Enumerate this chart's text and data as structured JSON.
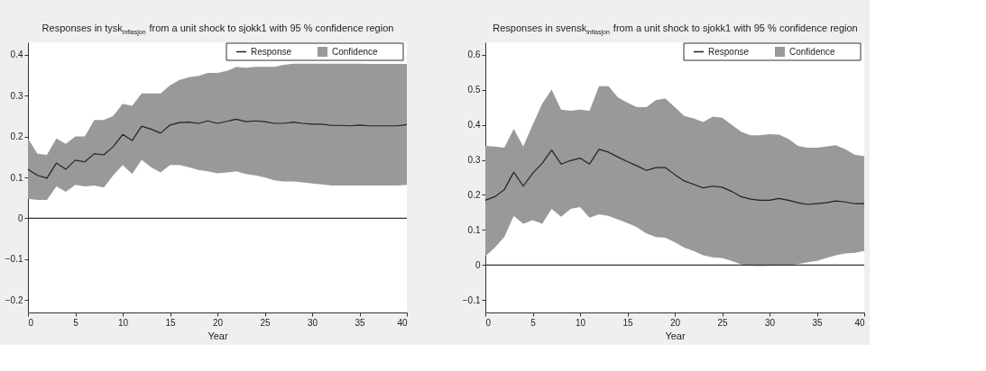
{
  "chart_data": [
    {
      "type": "line",
      "title": "Responses in tysk$_{inflasjon}$ from a unit shock to sjokk1 with 95 % confidence region",
      "xlabel": "Year",
      "x": [
        0,
        1,
        2,
        3,
        4,
        5,
        6,
        7,
        8,
        9,
        10,
        11,
        12,
        13,
        14,
        15,
        16,
        17,
        18,
        19,
        20,
        21,
        22,
        23,
        24,
        25,
        26,
        27,
        28,
        29,
        30,
        31,
        32,
        33,
        34,
        35,
        36,
        37,
        38,
        39,
        40
      ],
      "series": [
        {
          "name": "Response",
          "type": "line",
          "color": "#222222",
          "values": [
            0.12,
            0.105,
            0.098,
            0.135,
            0.12,
            0.142,
            0.138,
            0.158,
            0.155,
            0.175,
            0.205,
            0.19,
            0.225,
            0.218,
            0.208,
            0.228,
            0.234,
            0.235,
            0.232,
            0.238,
            0.232,
            0.237,
            0.242,
            0.236,
            0.238,
            0.236,
            0.232,
            0.232,
            0.235,
            0.232,
            0.23,
            0.23,
            0.227,
            0.227,
            0.226,
            0.228,
            0.226,
            0.226,
            0.226,
            0.226,
            0.229
          ]
        },
        {
          "name": "Confidence",
          "type": "area",
          "color": "#999999",
          "values": [
            null,
            null,
            null,
            null,
            null,
            null,
            null,
            null,
            null,
            null,
            null,
            null,
            null,
            null,
            null,
            null,
            null,
            null,
            null,
            null,
            null,
            null,
            null,
            null,
            null,
            null,
            null,
            null,
            null,
            null,
            null,
            null,
            null,
            null,
            null,
            null,
            null,
            null,
            null,
            null,
            null
          ],
          "upper": [
            0.195,
            0.158,
            0.155,
            0.195,
            0.182,
            0.2,
            0.2,
            0.24,
            0.24,
            0.25,
            0.28,
            0.275,
            0.305,
            0.305,
            0.305,
            0.325,
            0.338,
            0.345,
            0.348,
            0.355,
            0.355,
            0.36,
            0.37,
            0.368,
            0.37,
            0.37,
            0.37,
            0.375,
            0.378,
            0.378,
            0.378,
            0.378,
            0.378,
            0.378,
            0.378,
            0.378,
            0.377,
            0.377,
            0.377,
            0.377,
            0.377
          ],
          "lower": [
            0.048,
            0.045,
            0.045,
            0.078,
            0.065,
            0.082,
            0.078,
            0.08,
            0.075,
            0.105,
            0.13,
            0.108,
            0.143,
            0.125,
            0.112,
            0.13,
            0.13,
            0.125,
            0.118,
            0.115,
            0.11,
            0.112,
            0.115,
            0.108,
            0.105,
            0.1,
            0.093,
            0.09,
            0.09,
            0.088,
            0.085,
            0.083,
            0.08,
            0.08,
            0.08,
            0.08,
            0.08,
            0.08,
            0.08,
            0.08,
            0.082
          ]
        }
      ],
      "xlim": [
        0,
        40
      ],
      "xticks": [
        0,
        5,
        10,
        15,
        20,
        25,
        30,
        35,
        40
      ],
      "ylim": [
        -0.23,
        0.43
      ],
      "yticks": [
        -0.2,
        -0.1,
        0,
        0.1,
        0.2,
        0.3,
        0.4
      ],
      "ref_lines": [
        {
          "axis": "y",
          "value": 0,
          "color": "#333333"
        }
      ],
      "legend": "top right",
      "grid": false
    },
    {
      "type": "line",
      "title": "Responses in svensk$_{inflasjon}$ from a unit shock to sjokk1 with 95 % confidence region",
      "xlabel": "Year",
      "x": [
        0,
        1,
        2,
        3,
        4,
        5,
        6,
        7,
        8,
        9,
        10,
        11,
        12,
        13,
        14,
        15,
        16,
        17,
        18,
        19,
        20,
        21,
        22,
        23,
        24,
        25,
        26,
        27,
        28,
        29,
        30,
        31,
        32,
        33,
        34,
        35,
        36,
        37,
        38,
        39,
        40
      ],
      "series": [
        {
          "name": "Response",
          "type": "line",
          "color": "#222222",
          "values": [
            0.185,
            0.195,
            0.215,
            0.265,
            0.225,
            0.262,
            0.29,
            0.328,
            0.288,
            0.298,
            0.305,
            0.288,
            0.33,
            0.322,
            0.308,
            0.295,
            0.283,
            0.27,
            0.278,
            0.278,
            0.258,
            0.24,
            0.23,
            0.22,
            0.225,
            0.222,
            0.21,
            0.195,
            0.188,
            0.185,
            0.185,
            0.19,
            0.185,
            0.178,
            0.173,
            0.175,
            0.178,
            0.183,
            0.18,
            0.175,
            0.175
          ]
        },
        {
          "name": "Confidence",
          "type": "area",
          "color": "#999999",
          "values": [
            null,
            null,
            null,
            null,
            null,
            null,
            null,
            null,
            null,
            null,
            null,
            null,
            null,
            null,
            null,
            null,
            null,
            null,
            null,
            null,
            null,
            null,
            null,
            null,
            null,
            null,
            null,
            null,
            null,
            null,
            null,
            null,
            null,
            null,
            null,
            null,
            null,
            null,
            null,
            null,
            null
          ],
          "upper": [
            0.34,
            0.338,
            0.335,
            0.388,
            0.338,
            0.4,
            0.46,
            0.5,
            0.443,
            0.44,
            0.443,
            0.44,
            0.51,
            0.51,
            0.478,
            0.463,
            0.45,
            0.45,
            0.47,
            0.475,
            0.45,
            0.425,
            0.418,
            0.408,
            0.423,
            0.42,
            0.4,
            0.38,
            0.37,
            0.37,
            0.373,
            0.372,
            0.36,
            0.34,
            0.335,
            0.335,
            0.338,
            0.342,
            0.33,
            0.315,
            0.31
          ],
          "lower": [
            0.025,
            0.05,
            0.08,
            0.14,
            0.118,
            0.128,
            0.118,
            0.16,
            0.138,
            0.16,
            0.165,
            0.135,
            0.145,
            0.14,
            0.13,
            0.12,
            0.108,
            0.09,
            0.08,
            0.078,
            0.065,
            0.05,
            0.04,
            0.028,
            0.022,
            0.02,
            0.012,
            0.002,
            -0.002,
            -0.003,
            -0.002,
            0.0,
            0.0,
            0.003,
            0.008,
            0.012,
            0.02,
            0.028,
            0.033,
            0.035,
            0.04
          ]
        }
      ],
      "xlim": [
        0,
        40
      ],
      "xticks": [
        0,
        5,
        10,
        15,
        20,
        25,
        30,
        35,
        40
      ],
      "ylim": [
        -0.135,
        0.635
      ],
      "yticks": [
        -0.1,
        0,
        0.1,
        0.2,
        0.3,
        0.4,
        0.5,
        0.6
      ],
      "ref_lines": [
        {
          "axis": "y",
          "value": 0,
          "color": "#333333"
        }
      ],
      "legend": "top right",
      "grid": false
    }
  ]
}
